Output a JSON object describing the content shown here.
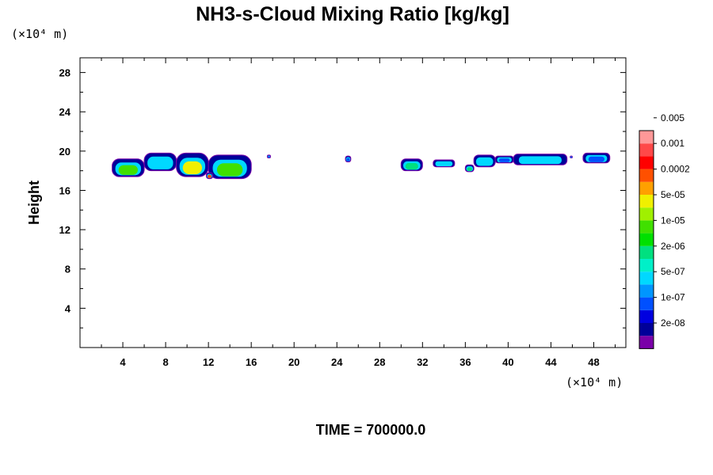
{
  "chart_data": {
    "type": "heatmap",
    "title": "NH3-s-Cloud Mixing Ratio [kg/kg]",
    "ylabel": "Height",
    "x_unit": "(×10⁴ m)",
    "y_unit": "(×10⁴ m)",
    "xlim": [
      0,
      51
    ],
    "ylim": [
      0,
      29.5
    ],
    "x_ticks": [
      4,
      8,
      12,
      16,
      20,
      24,
      28,
      32,
      36,
      40,
      44,
      48
    ],
    "y_ticks": [
      4,
      8,
      12,
      16,
      20,
      24,
      28
    ],
    "colorbar": {
      "colors": [
        "#7a00a8",
        "#000099",
        "#0000e0",
        "#0050ff",
        "#0096ff",
        "#00d8ff",
        "#00f0c8",
        "#00e080",
        "#00e000",
        "#40e000",
        "#a0f000",
        "#f0f000",
        "#ffa000",
        "#ff5000",
        "#ff0000",
        "#ff4848",
        "#ff9898"
      ],
      "labels": [
        "2e-08",
        "1e-07",
        "5e-07",
        "2e-06",
        "1e-05",
        "5e-05",
        "0.0002",
        "0.001",
        "0.005"
      ]
    },
    "regions": [
      {
        "x0": 3.0,
        "x1": 6.0,
        "y0": 17.4,
        "y1": 19.2,
        "level": "1e-05"
      },
      {
        "x0": 6.0,
        "x1": 9.0,
        "y0": 18.0,
        "y1": 19.8,
        "level": "5e-07"
      },
      {
        "x0": 9.0,
        "x1": 12.0,
        "y0": 17.4,
        "y1": 19.8,
        "level": "5e-05"
      },
      {
        "x0": 12.0,
        "x1": 16.0,
        "y0": 17.2,
        "y1": 19.6,
        "level": "1e-05"
      },
      {
        "x0": 11.8,
        "x1": 12.4,
        "y0": 17.2,
        "y1": 17.8,
        "level": "0.0002"
      },
      {
        "x0": 17.5,
        "x1": 17.8,
        "y0": 19.3,
        "y1": 19.6,
        "level": "1e-07"
      },
      {
        "x0": 24.8,
        "x1": 25.3,
        "y0": 18.9,
        "y1": 19.5,
        "level": "1e-07"
      },
      {
        "x0": 30.0,
        "x1": 32.0,
        "y0": 18.0,
        "y1": 19.2,
        "level": "2e-06"
      },
      {
        "x0": 33.0,
        "x1": 35.0,
        "y0": 18.4,
        "y1": 19.1,
        "level": "5e-07"
      },
      {
        "x0": 36.0,
        "x1": 36.8,
        "y0": 17.9,
        "y1": 18.6,
        "level": "2e-06"
      },
      {
        "x0": 36.8,
        "x1": 38.8,
        "y0": 18.4,
        "y1": 19.6,
        "level": "5e-07"
      },
      {
        "x0": 38.8,
        "x1": 40.5,
        "y0": 18.8,
        "y1": 19.5,
        "level": "1e-07"
      },
      {
        "x0": 40.5,
        "x1": 45.5,
        "y0": 18.6,
        "y1": 19.7,
        "level": "5e-07"
      },
      {
        "x0": 45.8,
        "x1": 46.0,
        "y0": 19.3,
        "y1": 19.5,
        "level": "1e-07"
      },
      {
        "x0": 47.0,
        "x1": 49.5,
        "y0": 18.8,
        "y1": 19.8,
        "level": "1e-07"
      }
    ]
  },
  "footer": {
    "time_label": "TIME = 700000.0"
  }
}
